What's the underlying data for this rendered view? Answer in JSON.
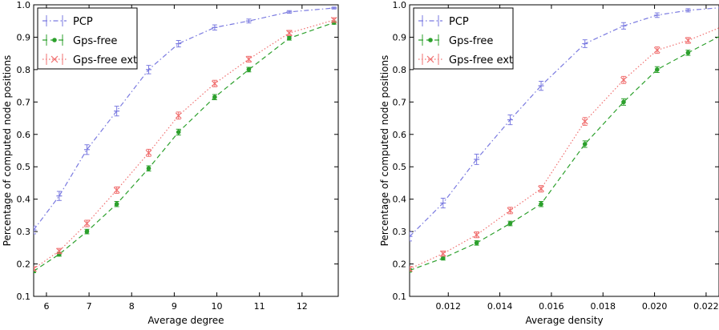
{
  "chart_data": [
    {
      "type": "line",
      "xlabel": "Average degree",
      "ylabel": "Percentage of computed node positions",
      "xlim": [
        5.7,
        12.85
      ],
      "ylim": [
        0.1,
        1.0
      ],
      "xticks": [
        6,
        7,
        8,
        9,
        10,
        11,
        12
      ],
      "xtick_labels": [
        "6",
        "7",
        "8",
        "9",
        "10",
        "11",
        "12"
      ],
      "yticks": [
        0.1,
        0.2,
        0.3,
        0.4,
        0.5,
        0.6,
        0.7,
        0.8,
        0.9,
        1.0
      ],
      "ytick_labels": [
        "0.1",
        "0.2",
        "0.3",
        "0.4",
        "0.5",
        "0.6",
        "0.7",
        "0.8",
        "0.9",
        "1.0"
      ],
      "legend_position": "top-left",
      "grid": false,
      "series": [
        {
          "name": "PCP",
          "color": "#7a7ae0",
          "linestyle": "dashdot",
          "marker": "plus",
          "x": [
            5.7,
            6.3,
            6.95,
            7.65,
            8.4,
            9.1,
            9.95,
            10.75,
            11.7,
            12.75
          ],
          "y": [
            0.305,
            0.41,
            0.553,
            0.672,
            0.8,
            0.88,
            0.93,
            0.95,
            0.978,
            0.99
          ],
          "err": [
            0.012,
            0.014,
            0.015,
            0.015,
            0.013,
            0.01,
            0.008,
            0.006,
            0.004,
            0.003
          ]
        },
        {
          "name": "Gps-free",
          "color": "#2ca02c",
          "linestyle": "dashed",
          "marker": "dot",
          "x": [
            5.7,
            6.3,
            6.95,
            7.65,
            8.4,
            9.1,
            9.95,
            10.75,
            11.7,
            12.75
          ],
          "y": [
            0.178,
            0.23,
            0.3,
            0.385,
            0.495,
            0.607,
            0.715,
            0.8,
            0.897,
            0.945
          ],
          "err": [
            0.005,
            0.006,
            0.007,
            0.008,
            0.008,
            0.009,
            0.008,
            0.007,
            0.006,
            0.005
          ]
        },
        {
          "name": "Gps-free ext",
          "color": "#f07070",
          "linestyle": "dotted",
          "marker": "x",
          "x": [
            5.7,
            6.3,
            6.95,
            7.65,
            8.4,
            9.1,
            9.95,
            10.75,
            11.7,
            12.75
          ],
          "y": [
            0.185,
            0.24,
            0.325,
            0.428,
            0.543,
            0.658,
            0.757,
            0.832,
            0.913,
            0.953
          ],
          "err": [
            0.006,
            0.008,
            0.01,
            0.01,
            0.011,
            0.011,
            0.01,
            0.009,
            0.008,
            0.007
          ]
        }
      ]
    },
    {
      "type": "line",
      "xlabel": "Average density",
      "ylabel": "Percentage of computed node positions",
      "xlim": [
        0.0105,
        0.0225
      ],
      "ylim": [
        0.1,
        1.0
      ],
      "xticks": [
        0.012,
        0.014,
        0.016,
        0.018,
        0.02,
        0.022
      ],
      "xtick_labels": [
        "0.012",
        "0.014",
        "0.016",
        "0.018",
        "0.020",
        "0.022"
      ],
      "yticks": [
        0.1,
        0.2,
        0.3,
        0.4,
        0.5,
        0.6,
        0.7,
        0.8,
        0.9,
        1.0
      ],
      "ytick_labels": [
        "0.1",
        "0.2",
        "0.3",
        "0.4",
        "0.5",
        "0.6",
        "0.7",
        "0.8",
        "0.9",
        "1.0"
      ],
      "legend_position": "top-left",
      "grid": false,
      "series": [
        {
          "name": "PCP",
          "color": "#7a7ae0",
          "linestyle": "dashdot",
          "marker": "plus",
          "x": [
            0.0105,
            0.0118,
            0.0131,
            0.0144,
            0.0156,
            0.0173,
            0.0188,
            0.0201,
            0.0213,
            0.0227
          ],
          "y": [
            0.285,
            0.388,
            0.523,
            0.645,
            0.75,
            0.88,
            0.935,
            0.968,
            0.983,
            0.992
          ],
          "err": [
            0.014,
            0.015,
            0.016,
            0.015,
            0.014,
            0.012,
            0.01,
            0.007,
            0.005,
            0.003
          ]
        },
        {
          "name": "Gps-free",
          "color": "#2ca02c",
          "linestyle": "dashed",
          "marker": "dot",
          "x": [
            0.0105,
            0.0118,
            0.0131,
            0.0144,
            0.0156,
            0.0173,
            0.0188,
            0.0201,
            0.0213,
            0.0227
          ],
          "y": [
            0.18,
            0.218,
            0.265,
            0.325,
            0.385,
            0.57,
            0.7,
            0.8,
            0.852,
            0.91
          ],
          "err": [
            0.005,
            0.006,
            0.007,
            0.007,
            0.008,
            0.01,
            0.01,
            0.009,
            0.008,
            0.007
          ]
        },
        {
          "name": "Gps-free ext",
          "color": "#f07070",
          "linestyle": "dotted",
          "marker": "x",
          "x": [
            0.0105,
            0.0118,
            0.0131,
            0.0144,
            0.0156,
            0.0173,
            0.0188,
            0.0201,
            0.0213,
            0.0227
          ],
          "y": [
            0.185,
            0.232,
            0.29,
            0.365,
            0.432,
            0.64,
            0.768,
            0.86,
            0.89,
            0.935
          ],
          "err": [
            0.007,
            0.008,
            0.009,
            0.01,
            0.01,
            0.012,
            0.011,
            0.01,
            0.009,
            0.008
          ]
        }
      ]
    }
  ]
}
